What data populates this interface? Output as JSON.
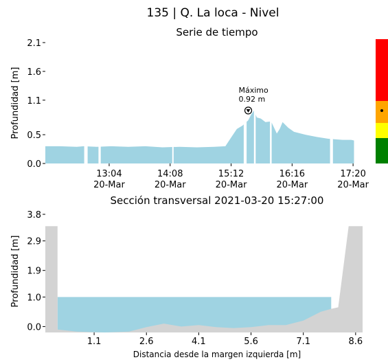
{
  "title": "135 | Q. La loca - Nivel",
  "colors": {
    "fill": "#9fd3e2",
    "ground": "#d3d3d3",
    "alert_red": "#ff0000",
    "alert_orange": "#ffa500",
    "alert_yellow": "#ffff00",
    "alert_green": "#008000"
  },
  "chart_data": [
    {
      "type": "area",
      "title": "Serie de tiempo",
      "ylabel": "Profundidad [m]",
      "xlabel": "",
      "ylim": [
        0,
        2.1
      ],
      "yticks": [
        "2.1",
        "1.6",
        "1.1",
        "0.5",
        "0.0"
      ],
      "ytick_values": [
        2.1,
        1.6,
        1.1,
        0.5,
        0.0
      ],
      "xlim_hours": [
        11.95,
        17.5
      ],
      "xticks": [
        {
          "time": "13:04",
          "date": "20-Mar",
          "hour": 13.0667
        },
        {
          "time": "14:08",
          "date": "20-Mar",
          "hour": 14.1333
        },
        {
          "time": "15:12",
          "date": "20-Mar",
          "hour": 15.2
        },
        {
          "time": "16:16",
          "date": "20-Mar",
          "hour": 16.2667
        },
        {
          "time": "17:20",
          "date": "20-Mar",
          "hour": 17.3333
        }
      ],
      "series_hours": [
        11.95,
        12.2,
        12.5,
        12.62,
        12.85,
        13.1,
        13.4,
        13.7,
        14.0,
        14.3,
        14.6,
        14.9,
        15.1,
        15.2,
        15.3,
        15.4,
        15.5,
        15.55,
        15.6,
        15.65,
        15.72,
        15.8,
        15.9,
        16.0,
        16.05,
        16.1,
        16.2,
        16.3,
        16.5,
        16.7,
        16.9,
        17.15,
        17.3,
        17.35
      ],
      "series_values": [
        0.3,
        0.3,
        0.29,
        0.3,
        0.29,
        0.3,
        0.29,
        0.3,
        0.28,
        0.29,
        0.28,
        0.29,
        0.3,
        0.45,
        0.6,
        0.66,
        0.75,
        0.85,
        0.92,
        0.8,
        0.78,
        0.72,
        0.73,
        0.52,
        0.6,
        0.72,
        0.62,
        0.55,
        0.5,
        0.46,
        0.43,
        0.41,
        0.41,
        0.4
      ],
      "gaps_hours": [
        [
          12.63,
          12.69
        ],
        [
          12.88,
          12.92
        ],
        [
          14.17,
          14.19
        ],
        [
          15.42,
          15.47
        ],
        [
          15.6,
          15.63
        ],
        [
          15.88,
          15.91
        ],
        [
          16.93,
          16.98
        ]
      ],
      "max_annotation": {
        "label": "Máximo",
        "value_text": "0.92 m",
        "hour": 15.5,
        "value": 0.92
      },
      "alert_levels": [
        "red",
        "orange",
        "yellow",
        "green"
      ],
      "alert_indicator": "orange"
    },
    {
      "type": "area",
      "title": "Sección transversal 2021-03-20 15:27:00",
      "ylabel": "Profundidad [m]",
      "xlabel": "Distancia desde la margen izquierda [m]",
      "ylim": [
        -0.2,
        3.8
      ],
      "xlim": [
        -0.3,
        8.8
      ],
      "yticks": [
        "3.8",
        "2.9",
        "1.9",
        "1.0",
        "0.0"
      ],
      "ytick_values": [
        3.8,
        2.9,
        1.9,
        1.0,
        0.0
      ],
      "xticks": [
        "1.1",
        "2.6",
        "4.1",
        "5.6",
        "7.1",
        "8.6"
      ],
      "xtick_values": [
        1.1,
        2.6,
        4.1,
        5.6,
        7.1,
        8.6
      ],
      "water_level": 1.0,
      "water_left": 0.05,
      "water_right": 7.9,
      "bed_x": [
        -0.3,
        0.05,
        0.05,
        0.6,
        1.4,
        2.1,
        2.6,
        3.1,
        3.6,
        4.1,
        4.6,
        5.1,
        5.6,
        6.1,
        6.6,
        7.1,
        7.6,
        7.9,
        8.1,
        8.4,
        8.8
      ],
      "bed_y": [
        3.4,
        3.4,
        -0.1,
        -0.17,
        -0.2,
        -0.17,
        -0.02,
        0.1,
        0.0,
        0.05,
        -0.02,
        -0.05,
        -0.02,
        0.05,
        0.05,
        0.2,
        0.5,
        0.6,
        0.65,
        3.4,
        3.4
      ]
    }
  ]
}
